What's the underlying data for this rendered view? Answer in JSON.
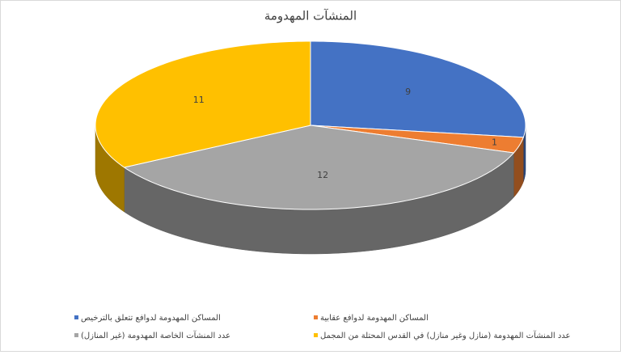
{
  "chart_data": {
    "type": "pie3d",
    "title": "المنشآت المهدومة",
    "categories": [
      "المساكن المهدومة لدوافع تتعلق بالترخيص",
      "المساكن المهدومة لدوافع  عقابية",
      "عدد المنشآت الخاصة المهدومة (غير المنازل)",
      "عدد المنشآت المهدومة (منازل وغير منازل) في القدس المحتلة من المجمل"
    ],
    "values": [
      9,
      1,
      12,
      11
    ],
    "colors": [
      "#4472c4",
      "#ed7d31",
      "#a5a5a5",
      "#ffc000"
    ],
    "legend": "bottom"
  }
}
